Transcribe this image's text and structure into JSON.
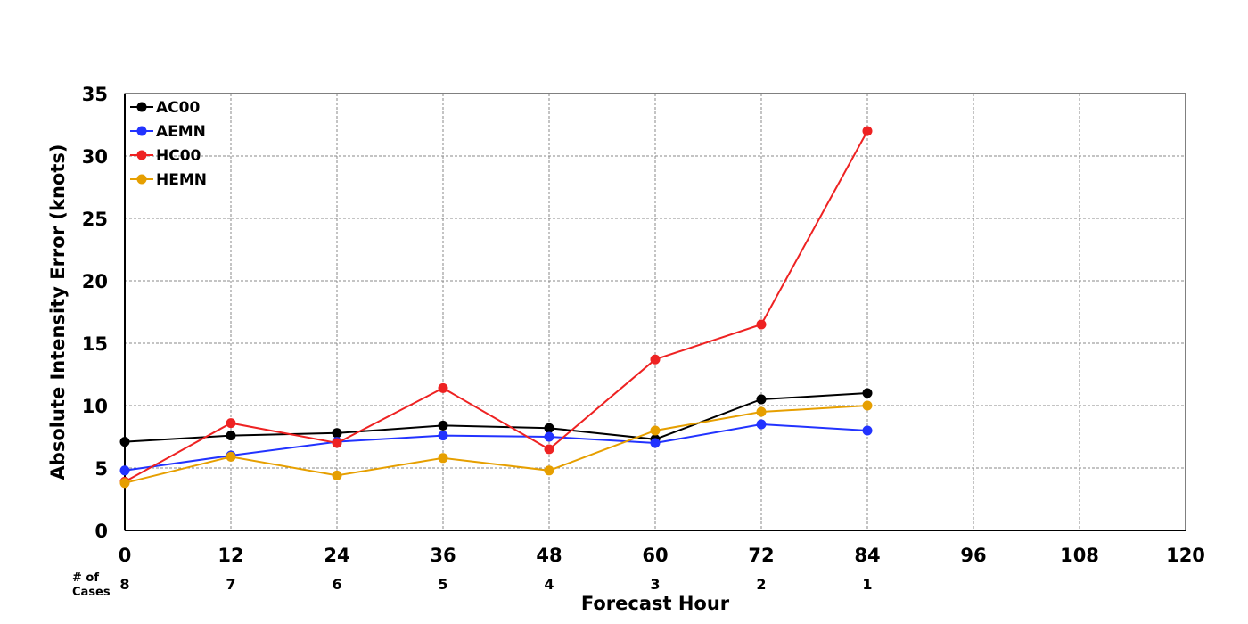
{
  "chart_data": {
    "type": "line",
    "xlabel": "Forecast Hour",
    "ylabel": "Absolute Intensity Error (knots)",
    "xlim": [
      0,
      120
    ],
    "ylim": [
      0,
      35
    ],
    "x_ticks": [
      0,
      12,
      24,
      36,
      48,
      60,
      72,
      84,
      96,
      108,
      120
    ],
    "y_ticks": [
      0,
      5,
      10,
      15,
      20,
      25,
      30,
      35
    ],
    "grid": true,
    "legend_position": "top-left",
    "x": [
      0,
      12,
      24,
      36,
      48,
      60,
      72,
      84
    ],
    "series": [
      {
        "name": "AC00",
        "color": "#000000",
        "values": [
          7.1,
          7.6,
          7.8,
          8.4,
          8.2,
          7.3,
          10.5,
          11.0
        ]
      },
      {
        "name": "AEMN",
        "color": "#2233ff",
        "values": [
          4.8,
          6.0,
          7.1,
          7.6,
          7.5,
          7.0,
          8.5,
          8.0
        ]
      },
      {
        "name": "HC00",
        "color": "#ee2222",
        "values": [
          3.9,
          8.6,
          7.0,
          11.4,
          6.5,
          13.7,
          16.5,
          32.0
        ]
      },
      {
        "name": "HEMN",
        "color": "#e69f00",
        "values": [
          3.8,
          5.9,
          4.4,
          5.8,
          4.8,
          8.0,
          9.5,
          10.0
        ]
      }
    ],
    "cases_title": "# of Cases",
    "cases": [
      {
        "x": 0,
        "n": "8"
      },
      {
        "x": 12,
        "n": "7"
      },
      {
        "x": 24,
        "n": "6"
      },
      {
        "x": 36,
        "n": "5"
      },
      {
        "x": 48,
        "n": "4"
      },
      {
        "x": 60,
        "n": "3"
      },
      {
        "x": 72,
        "n": "2"
      },
      {
        "x": 84,
        "n": "1"
      }
    ]
  }
}
